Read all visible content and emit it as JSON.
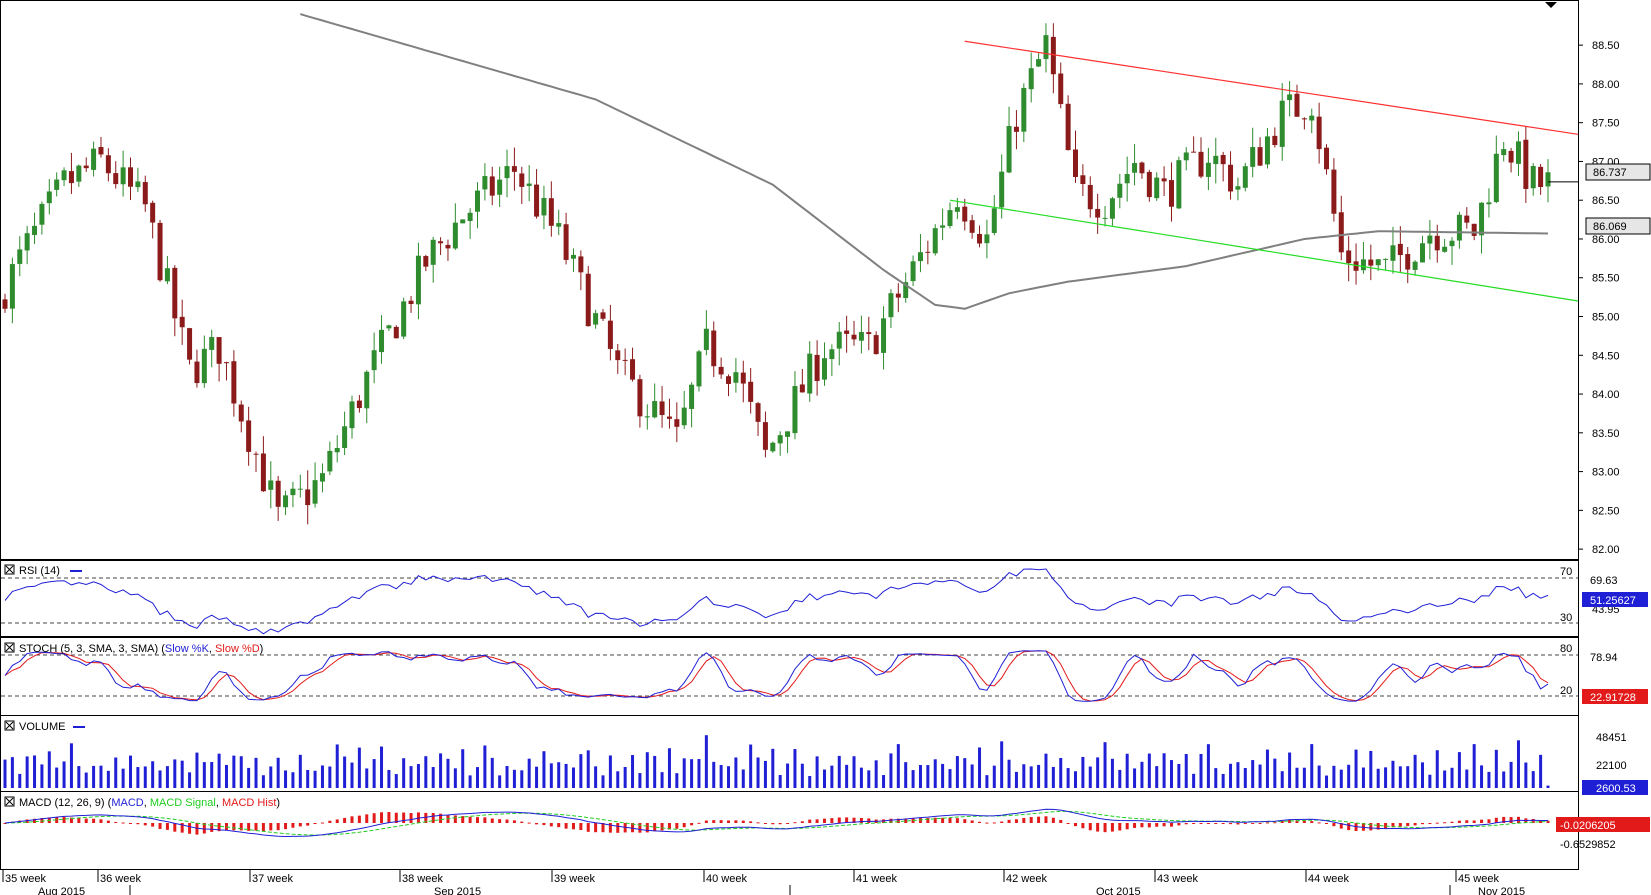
{
  "panels": {
    "rsi": {
      "name": "RSI (14)",
      "levels": [
        "70",
        "30"
      ],
      "value": "51.25627",
      "tick": "69.63",
      "tick2": "43.95"
    },
    "stoch": {
      "prefix": "STOCH (5, 3, SMA, 3, SMA) (",
      "k": "Slow %K",
      "sep": ", ",
      "d": "Slow %D",
      "suffix": ")",
      "levels": [
        "80",
        "20"
      ],
      "tick": "78.94",
      "value": "22.91728"
    },
    "volume": {
      "name": "VOLUME",
      "ticks": [
        "48451",
        "22100"
      ],
      "value": "2600.53"
    },
    "macd": {
      "prefix": "MACD (12, 26, 9) (",
      "macd": "MACD",
      "sep": ", ",
      "signal": "MACD Signal",
      "sep2": ", ",
      "hist": "MACD Hist",
      "suffix": ")",
      "value": "-0.0206205",
      "tick": "-0.6529852"
    }
  },
  "time_axis": {
    "weeks": [
      "35 week",
      "36 week",
      "37 week",
      "38 week",
      "39 week",
      "40 week",
      "41 week",
      "42 week",
      "43 week",
      "44 week",
      "45 week"
    ],
    "months": [
      "Aug 2015",
      "Sep 2015",
      "Oct 2015",
      "Nov 2015"
    ]
  },
  "colors": {
    "up": "#2e8b2e",
    "down": "#8b1a1a",
    "ma": "#808080",
    "resistance": "#ff3030",
    "support": "#22dd22",
    "rsi": "#1f1fd6",
    "stoch_k": "#1f1fd6",
    "stoch_d": "#e31a1a",
    "volume": "#1f1fd6",
    "macd": "#1f1fd6",
    "signal": "#22cc22",
    "hist": "#e31a1a"
  },
  "chart_data": {
    "type": "candlestick",
    "price_axis": {
      "ticks": [
        "88.50",
        "88.00",
        "87.50",
        "87.00",
        "86.50",
        "86.00",
        "85.50",
        "85.00",
        "84.50",
        "84.00",
        "83.50",
        "83.00",
        "82.50",
        "82.00"
      ],
      "ylim": [
        81.95,
        88.85
      ]
    },
    "last_price": "86.737",
    "ma_value": "86.069",
    "price_path": [
      [
        0,
        85.2
      ],
      [
        4,
        85.9
      ],
      [
        9,
        86.7
      ],
      [
        14,
        87.0
      ],
      [
        20,
        86.4
      ],
      [
        26,
        84.3
      ],
      [
        30,
        84.6
      ],
      [
        34,
        83.5
      ],
      [
        38,
        82.4
      ],
      [
        44,
        82.9
      ],
      [
        50,
        84.2
      ],
      [
        58,
        85.7
      ],
      [
        63,
        86.3
      ],
      [
        70,
        86.9
      ],
      [
        76,
        86.0
      ],
      [
        84,
        84.3
      ],
      [
        92,
        83.4
      ],
      [
        96,
        84.6
      ],
      [
        100,
        84.3
      ],
      [
        104,
        83.2
      ],
      [
        112,
        84.6
      ],
      [
        118,
        84.6
      ],
      [
        124,
        85.6
      ],
      [
        130,
        86.6
      ],
      [
        134,
        86.0
      ],
      [
        138,
        87.6
      ],
      [
        142,
        88.5
      ],
      [
        146,
        86.6
      ],
      [
        150,
        86.5
      ],
      [
        154,
        87.0
      ],
      [
        158,
        86.6
      ],
      [
        164,
        87.1
      ],
      [
        168,
        86.7
      ],
      [
        174,
        87.6
      ],
      [
        178,
        87.8
      ],
      [
        182,
        85.8
      ],
      [
        188,
        85.6
      ],
      [
        194,
        86.1
      ],
      [
        200,
        86.1
      ],
      [
        204,
        87.3
      ],
      [
        208,
        86.7
      ]
    ],
    "volume_pattern": [
      0.55,
      0.7,
      0.45,
      0.8,
      0.6,
      0.5,
      0.75,
      0.4,
      0.65,
      0.9,
      0.55,
      0.35,
      0.7,
      0.5
    ],
    "ma_points": [
      [
        40,
        88.9
      ],
      [
        80,
        87.8
      ],
      [
        104,
        86.7
      ],
      [
        119,
        85.6
      ],
      [
        126,
        85.15
      ],
      [
        130,
        85.1
      ],
      [
        136,
        85.3
      ],
      [
        144,
        85.45
      ],
      [
        160,
        85.65
      ],
      [
        176,
        86.0
      ],
      [
        186,
        86.1
      ],
      [
        210,
        86.07
      ]
    ],
    "channel": {
      "resistance": [
        [
          130,
          88.55
        ],
        [
          210,
          87.35
        ]
      ],
      "support": [
        [
          128,
          86.5
        ],
        [
          210,
          85.2
        ]
      ]
    }
  }
}
